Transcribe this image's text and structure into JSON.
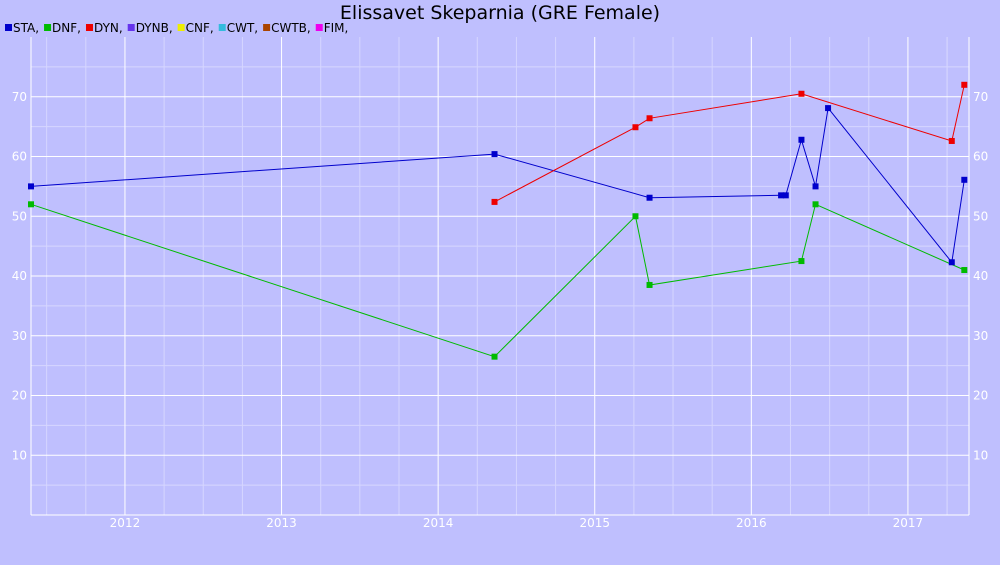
{
  "chart_data": {
    "type": "line",
    "title": "Elissavet Skeparnia (GRE Female)",
    "xlabel": "",
    "ylabel": "",
    "xlim": [
      2011.4,
      2017.39
    ],
    "ylim": [
      0,
      80
    ],
    "x_ticks": [
      2012,
      2013,
      2014,
      2015,
      2016,
      2017
    ],
    "y_ticks": [
      10,
      20,
      30,
      40,
      50,
      60,
      70
    ],
    "grid": true,
    "legend_position": "top-left",
    "colors": {
      "background": "#bfbffe",
      "grid_major": "#ffffff",
      "grid_minor": "#d6d6ff",
      "tick_label": "#ffffff"
    },
    "legend": [
      {
        "name": "STA",
        "label": "STA,",
        "color": "#0000cc"
      },
      {
        "name": "DNF",
        "label": "DNF,",
        "color": "#00bb00"
      },
      {
        "name": "DYN",
        "label": "DYN,",
        "color": "#ee0000"
      },
      {
        "name": "DYNB",
        "label": "DYNB,",
        "color": "#6633ee"
      },
      {
        "name": "CNF",
        "label": "CNF,",
        "color": "#eeee00"
      },
      {
        "name": "CWT",
        "label": "CWT,",
        "color": "#33bbdd"
      },
      {
        "name": "CWTB",
        "label": "CWTB,",
        "color": "#aa4400"
      },
      {
        "name": "FIM",
        "label": "FIM,",
        "color": "#ee00ee"
      }
    ],
    "series": [
      {
        "name": "STA",
        "color": "#0000cc",
        "x": [
          2011.4,
          2014.36,
          2015.35,
          2016.19,
          2016.22,
          2016.32,
          2016.41,
          2016.49,
          2017.28,
          2017.36
        ],
        "y": [
          55,
          60.4,
          53.1,
          53.5,
          53.5,
          62.8,
          55,
          68.1,
          42.3,
          56.1
        ]
      },
      {
        "name": "DNF",
        "color": "#00bb00",
        "x": [
          2011.4,
          2014.36,
          2015.26,
          2015.35,
          2016.32,
          2016.41,
          2017.36
        ],
        "y": [
          52,
          26.5,
          50,
          38.5,
          42.5,
          52,
          41
        ]
      },
      {
        "name": "DYN",
        "color": "#ee0000",
        "x": [
          2014.36,
          2015.26,
          2015.35,
          2016.32,
          2017.28,
          2017.36
        ],
        "y": [
          52.4,
          64.9,
          66.4,
          70.5,
          62.6,
          72
        ]
      }
    ]
  }
}
